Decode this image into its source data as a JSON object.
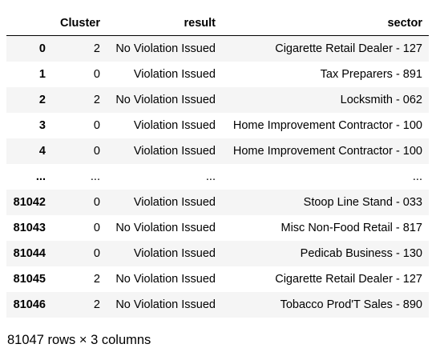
{
  "dataframe": {
    "columns": {
      "index": "",
      "cluster": "Cluster",
      "result": "result",
      "sector": "sector"
    },
    "rows": [
      {
        "index": "0",
        "cluster": "2",
        "result": "No Violation Issued",
        "sector": "Cigarette Retail Dealer - 127"
      },
      {
        "index": "1",
        "cluster": "0",
        "result": "Violation Issued",
        "sector": "Tax Preparers - 891"
      },
      {
        "index": "2",
        "cluster": "2",
        "result": "No Violation Issued",
        "sector": "Locksmith - 062"
      },
      {
        "index": "3",
        "cluster": "0",
        "result": "Violation Issued",
        "sector": "Home Improvement Contractor - 100"
      },
      {
        "index": "4",
        "cluster": "0",
        "result": "Violation Issued",
        "sector": "Home Improvement Contractor - 100"
      },
      {
        "index": "...",
        "cluster": "...",
        "result": "...",
        "sector": "..."
      },
      {
        "index": "81042",
        "cluster": "0",
        "result": "Violation Issued",
        "sector": "Stoop Line Stand - 033"
      },
      {
        "index": "81043",
        "cluster": "0",
        "result": "No Violation Issued",
        "sector": "Misc Non-Food Retail - 817"
      },
      {
        "index": "81044",
        "cluster": "0",
        "result": "Violation Issued",
        "sector": "Pedicab Business - 130"
      },
      {
        "index": "81045",
        "cluster": "2",
        "result": "No Violation Issued",
        "sector": "Cigarette Retail Dealer - 127"
      },
      {
        "index": "81046",
        "cluster": "2",
        "result": "No Violation Issued",
        "sector": "Tobacco Prod'T Sales - 890"
      }
    ],
    "shape_text": "81047 rows × 3 columns"
  }
}
